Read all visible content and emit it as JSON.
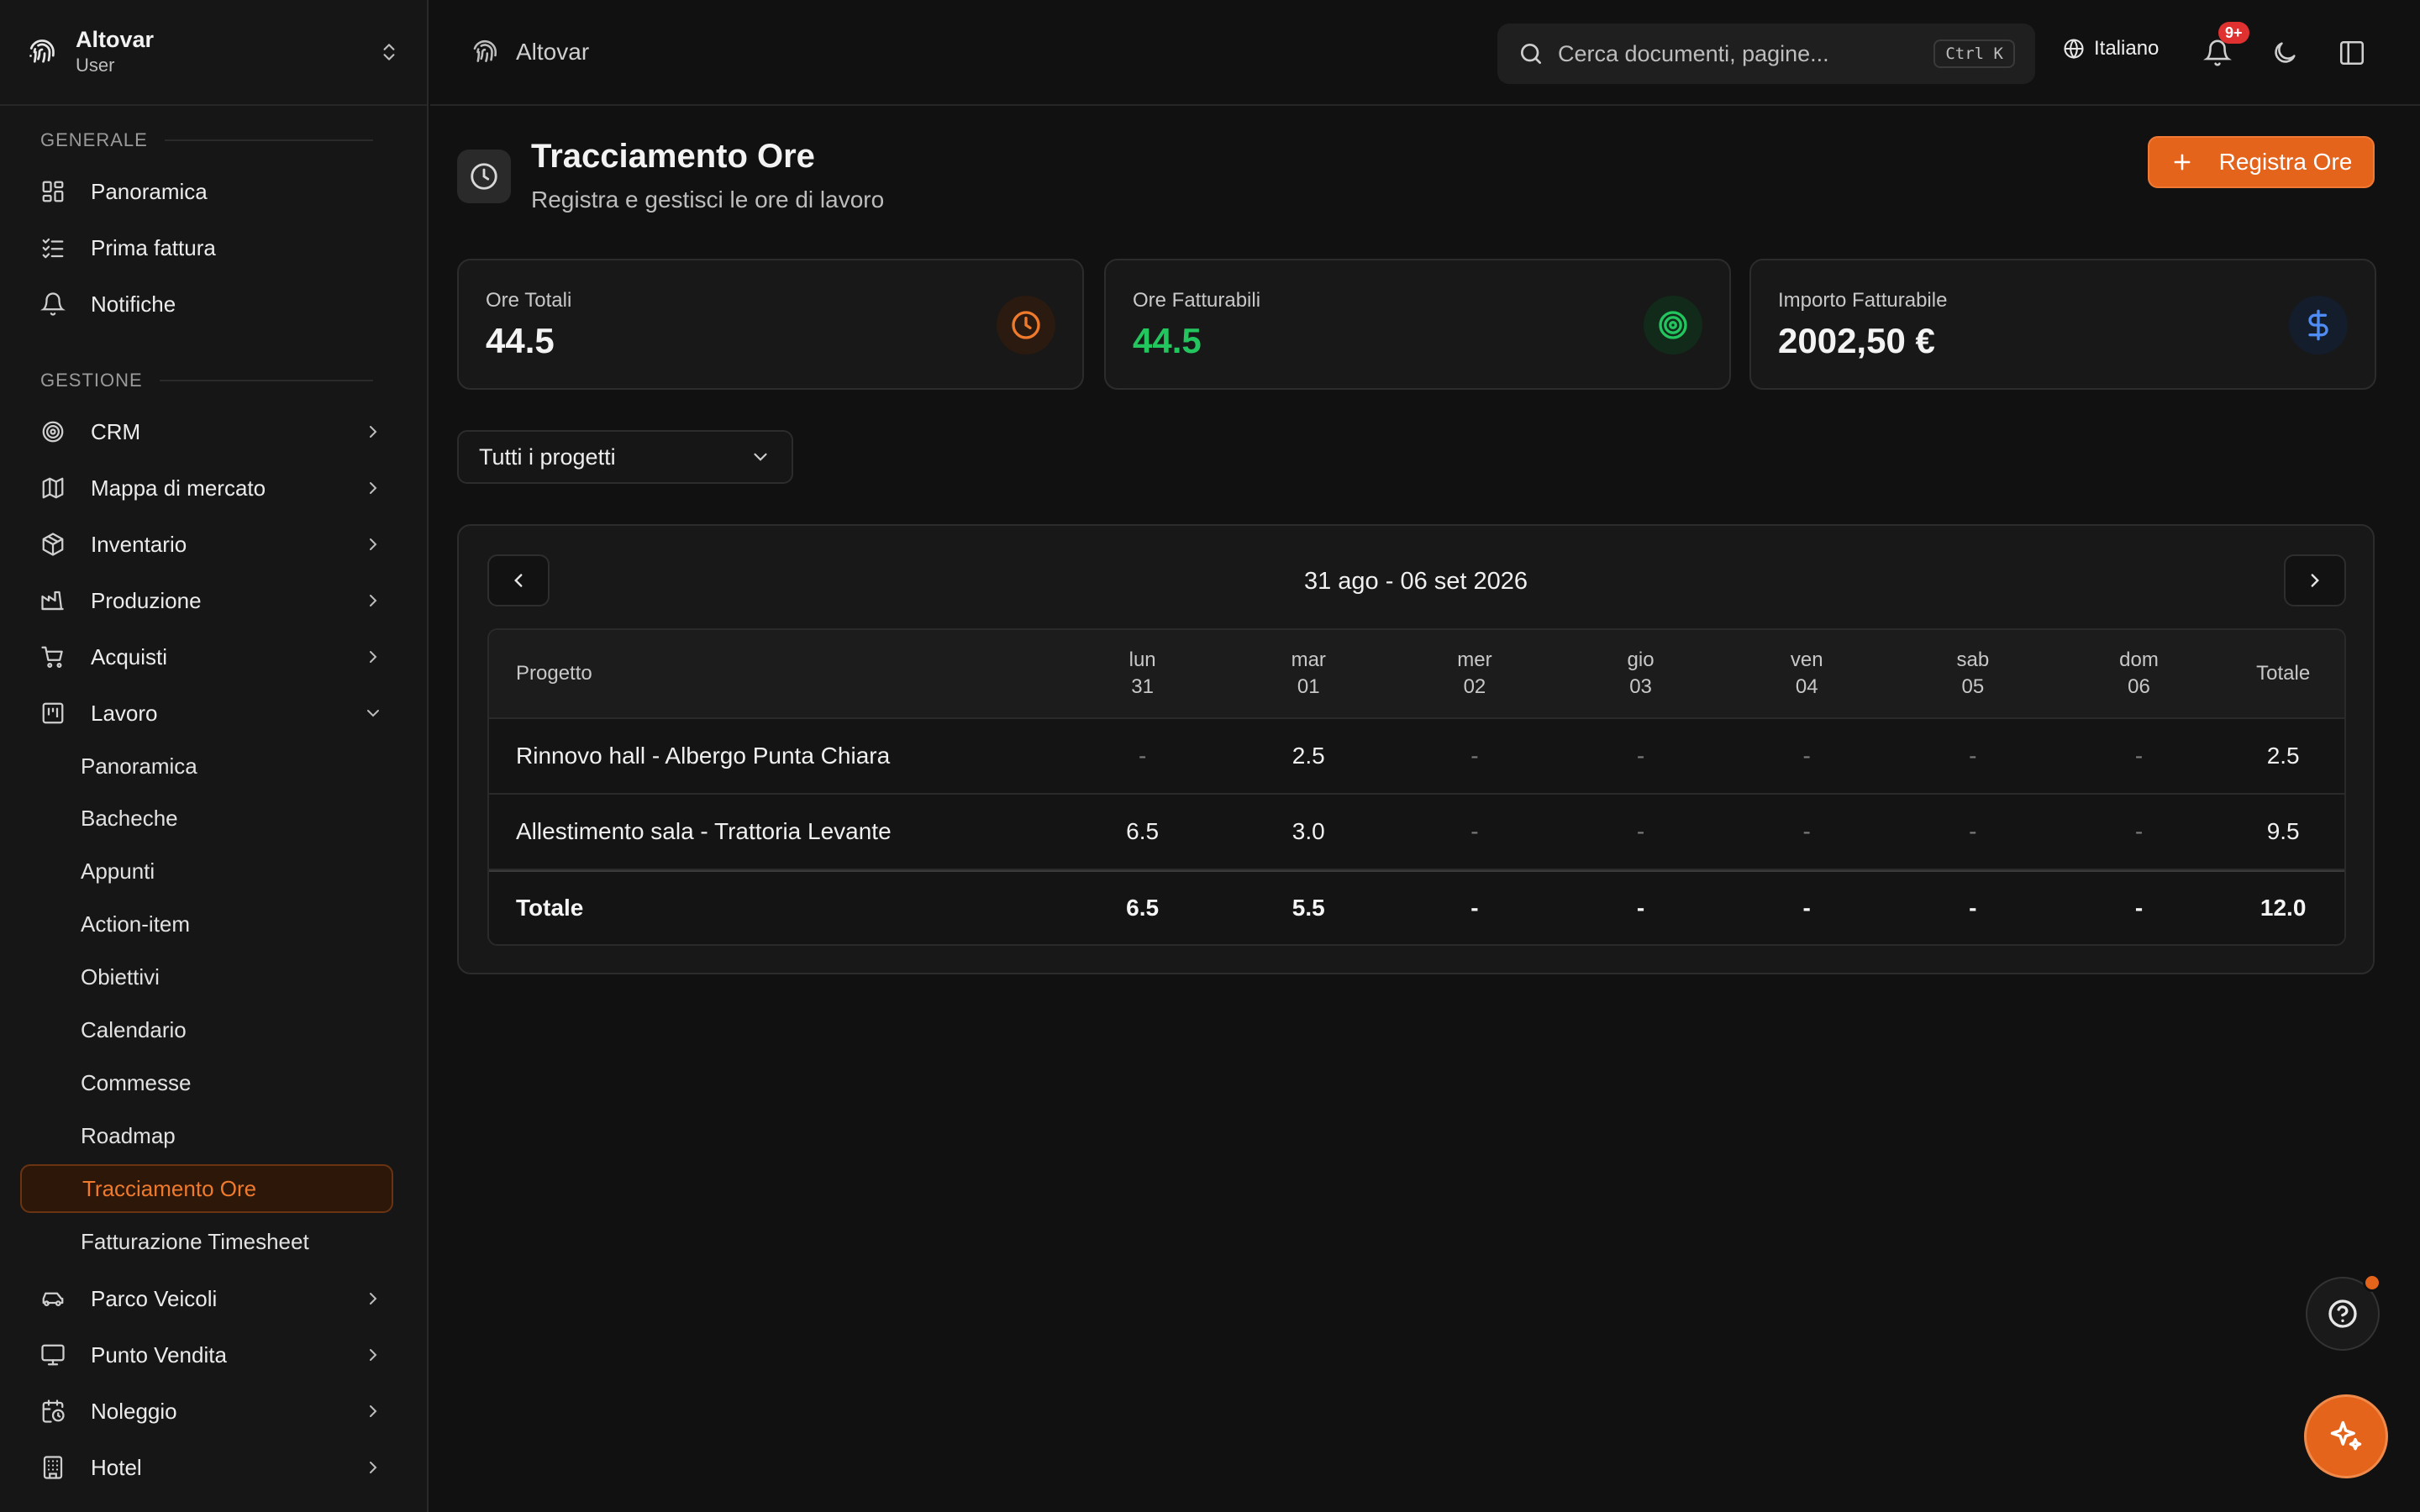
{
  "brand": {
    "app_name": "Altovar",
    "role": "User"
  },
  "sidebar": {
    "section_general": "GENERALE",
    "general_items": [
      {
        "label": "Panoramica",
        "icon": "dashboard-icon"
      },
      {
        "label": "Prima fattura",
        "icon": "checklist-icon"
      },
      {
        "label": "Notifiche",
        "icon": "bell-icon"
      }
    ],
    "section_management": "GESTIONE",
    "management_items": [
      {
        "label": "CRM",
        "icon": "target-icon"
      },
      {
        "label": "Mappa di mercato",
        "icon": "map-icon"
      },
      {
        "label": "Inventario",
        "icon": "package-icon"
      },
      {
        "label": "Produzione",
        "icon": "factory-icon"
      },
      {
        "label": "Acquisti",
        "icon": "cart-icon"
      },
      {
        "label": "Lavoro",
        "icon": "kanban-icon",
        "expanded": true
      }
    ],
    "lavoro_sub_items": [
      "Panoramica",
      "Bacheche",
      "Appunti",
      "Action-item",
      "Obiettivi",
      "Calendario",
      "Commesse",
      "Roadmap",
      "Tracciamento Ore",
      "Fatturazione Timesheet"
    ],
    "active_sub_item": "Tracciamento Ore",
    "more_items": [
      {
        "label": "Parco Veicoli",
        "icon": "car-icon"
      },
      {
        "label": "Punto Vendita",
        "icon": "monitor-icon"
      },
      {
        "label": "Noleggio",
        "icon": "calendar-clock-icon"
      },
      {
        "label": "Hotel",
        "icon": "building-icon"
      }
    ]
  },
  "topbar": {
    "breadcrumb": "Altovar",
    "search_placeholder": "Cerca documenti, pagine...",
    "search_shortcut": "Ctrl K",
    "language": "Italiano",
    "notification_badge": "9+"
  },
  "page": {
    "title": "Tracciamento Ore",
    "subtitle": "Registra e gestisci le ore di lavoro",
    "primary_action": "Registra Ore"
  },
  "stats": [
    {
      "label": "Ore Totali",
      "value": "44.5",
      "value_color": "#f3f3f3",
      "accent": "#f07a2c",
      "icon": "clock-icon"
    },
    {
      "label": "Ore Fatturabili",
      "value": "44.5",
      "value_color": "#22c55e",
      "accent": "#22c55e",
      "icon": "target-icon"
    },
    {
      "label": "Importo Fatturabile",
      "value": "2002,50 €",
      "value_color": "#f3f3f3",
      "accent": "#4f8df5",
      "icon": "dollar-icon"
    }
  ],
  "filter": {
    "selected": "Tutti i progetti"
  },
  "week": {
    "range": "31 ago - 06 set 2026",
    "columns": {
      "project": "Progetto",
      "days": [
        {
          "dow": "lun",
          "day": "31"
        },
        {
          "dow": "mar",
          "day": "01"
        },
        {
          "dow": "mer",
          "day": "02"
        },
        {
          "dow": "gio",
          "day": "03"
        },
        {
          "dow": "ven",
          "day": "04"
        },
        {
          "dow": "sab",
          "day": "05"
        },
        {
          "dow": "dom",
          "day": "06"
        }
      ],
      "total": "Totale"
    },
    "rows": [
      {
        "project": "Rinnovo hall - Albergo Punta Chiara",
        "hours": [
          "-",
          "2.5",
          "-",
          "-",
          "-",
          "-",
          "-"
        ],
        "total": "2.5"
      },
      {
        "project": "Allestimento sala - Trattoria Levante",
        "hours": [
          "6.5",
          "3.0",
          "-",
          "-",
          "-",
          "-",
          "-"
        ],
        "total": "9.5"
      }
    ],
    "totals": {
      "label": "Totale",
      "hours": [
        "6.5",
        "5.5",
        "-",
        "-",
        "-",
        "-",
        "-"
      ],
      "total": "12.0"
    }
  }
}
